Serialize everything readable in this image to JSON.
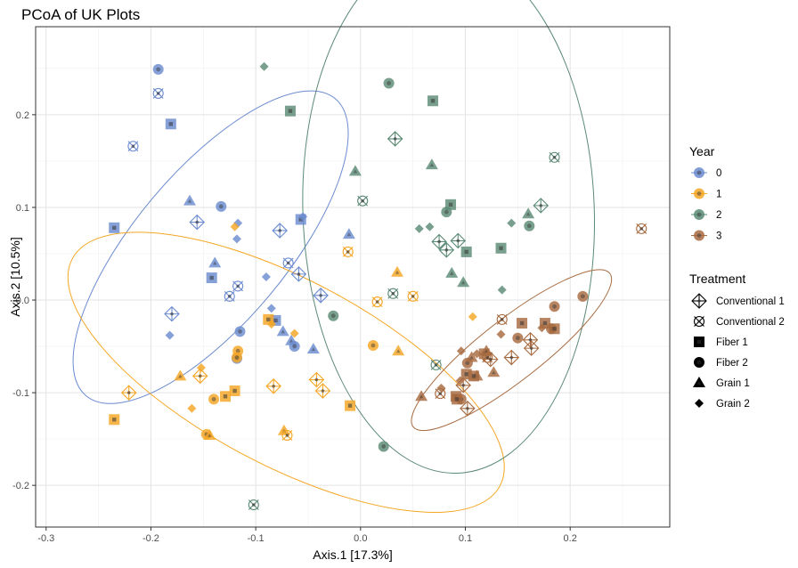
{
  "chart_data": {
    "type": "scatter",
    "title": "PCoA of UK Plots",
    "xlabel": "Axis.1   [17.3%]",
    "ylabel": "Axis.2   [10.5%]",
    "xlim": [
      -0.31,
      0.295
    ],
    "ylim": [
      -0.245,
      0.295
    ],
    "x_ticks": [
      -0.3,
      -0.2,
      -0.1,
      0.0,
      0.1,
      0.2
    ],
    "x_tick_labels": [
      "-0.3",
      "-0.2",
      "-0.1",
      "0.0",
      "0.1",
      "0.2"
    ],
    "y_ticks": [
      -0.2,
      -0.1,
      0.0,
      0.1,
      0.2
    ],
    "y_tick_labels": [
      "-0.2",
      "-0.1",
      "0.0",
      "0.1",
      "0.2"
    ],
    "grid": true,
    "legend_position": "right",
    "year_legend": {
      "title": "Year",
      "entries": [
        {
          "label": "0",
          "color": "#6b8bd0"
        },
        {
          "label": "1",
          "color": "#f5a623"
        },
        {
          "label": "2",
          "color": "#5b8a76"
        },
        {
          "label": "3",
          "color": "#a86a3f"
        }
      ]
    },
    "treatment_legend": {
      "title": "Treatment",
      "entries": [
        {
          "label": "Conventional 1",
          "shape": "conv1"
        },
        {
          "label": "Conventional 2",
          "shape": "conv2"
        },
        {
          "label": "Fiber 1",
          "shape": "fiber1"
        },
        {
          "label": "Fiber 2",
          "shape": "fiber2"
        },
        {
          "label": "Grain 1",
          "shape": "grain1"
        },
        {
          "label": "Grain 2",
          "shape": "grain2"
        }
      ]
    },
    "ellipses": [
      {
        "year": "0",
        "cx": -0.143,
        "cy": 0.057,
        "rx": 0.185,
        "ry": 0.082,
        "angle_deg": 50
      },
      {
        "year": "1",
        "cx": -0.071,
        "cy": -0.078,
        "rx": 0.231,
        "ry": 0.1,
        "angle_deg": -28
      },
      {
        "year": "2",
        "cx": 0.084,
        "cy": 0.096,
        "rx": 0.139,
        "ry": 0.283,
        "angle_deg": 2
      },
      {
        "year": "3",
        "cx": 0.144,
        "cy": -0.054,
        "rx": 0.119,
        "ry": 0.033,
        "angle_deg": 38
      }
    ],
    "points": [
      {
        "year": "0",
        "t": "fiber2",
        "x": -0.193,
        "y": 0.249
      },
      {
        "year": "0",
        "t": "conv2",
        "x": -0.193,
        "y": 0.223
      },
      {
        "year": "0",
        "t": "fiber1",
        "x": -0.181,
        "y": 0.19
      },
      {
        "year": "0",
        "t": "conv2",
        "x": -0.217,
        "y": 0.166
      },
      {
        "year": "0",
        "t": "fiber1",
        "x": -0.235,
        "y": 0.078
      },
      {
        "year": "0",
        "t": "grain1",
        "x": -0.163,
        "y": 0.107
      },
      {
        "year": "0",
        "t": "fiber2",
        "x": -0.133,
        "y": 0.101
      },
      {
        "year": "0",
        "t": "conv1",
        "x": -0.156,
        "y": 0.084
      },
      {
        "year": "0",
        "t": "grain2",
        "x": -0.117,
        "y": 0.083
      },
      {
        "year": "0",
        "t": "grain2",
        "x": -0.118,
        "y": 0.066
      },
      {
        "year": "0",
        "t": "grain1",
        "x": -0.139,
        "y": 0.04
      },
      {
        "year": "0",
        "t": "fiber1",
        "x": -0.142,
        "y": 0.024
      },
      {
        "year": "0",
        "t": "conv2",
        "x": -0.117,
        "y": 0.015
      },
      {
        "year": "0",
        "t": "conv2",
        "x": -0.125,
        "y": 0.004
      },
      {
        "year": "0",
        "t": "grain2",
        "x": -0.09,
        "y": 0.025
      },
      {
        "year": "0",
        "t": "conv1",
        "x": -0.077,
        "y": 0.075
      },
      {
        "year": "0",
        "t": "fiber1",
        "x": -0.057,
        "y": 0.087
      },
      {
        "year": "0",
        "t": "grain2",
        "x": -0.055,
        "y": 0.09
      },
      {
        "year": "0",
        "t": "grain1",
        "x": -0.011,
        "y": 0.071
      },
      {
        "year": "0",
        "t": "conv2",
        "x": -0.069,
        "y": 0.04
      },
      {
        "year": "0",
        "t": "conv1",
        "x": -0.059,
        "y": 0.028
      },
      {
        "year": "0",
        "t": "conv1",
        "x": -0.038,
        "y": 0.005
      },
      {
        "year": "0",
        "t": "conv1",
        "x": -0.18,
        "y": -0.015
      },
      {
        "year": "0",
        "t": "grain2",
        "x": -0.182,
        "y": -0.038
      },
      {
        "year": "0",
        "t": "grain2",
        "x": -0.085,
        "y": -0.009
      },
      {
        "year": "0",
        "t": "fiber2",
        "x": -0.115,
        "y": -0.034
      },
      {
        "year": "0",
        "t": "fiber1",
        "x": -0.081,
        "y": -0.022
      },
      {
        "year": "0",
        "t": "grain1",
        "x": -0.074,
        "y": -0.034
      },
      {
        "year": "0",
        "t": "grain1",
        "x": -0.066,
        "y": -0.044
      },
      {
        "year": "0",
        "t": "fiber2",
        "x": -0.063,
        "y": -0.05
      },
      {
        "year": "0",
        "t": "grain1",
        "x": -0.045,
        "y": -0.053
      },
      {
        "year": "0",
        "t": "fiber2",
        "x": -0.118,
        "y": -0.063
      },
      {
        "year": "1",
        "t": "grain2",
        "x": -0.12,
        "y": 0.079
      },
      {
        "year": "1",
        "t": "conv2",
        "x": -0.012,
        "y": 0.052
      },
      {
        "year": "1",
        "t": "grain1",
        "x": 0.035,
        "y": 0.03
      },
      {
        "year": "1",
        "t": "conv2",
        "x": 0.05,
        "y": 0.004
      },
      {
        "year": "1",
        "t": "conv2",
        "x": 0.016,
        "y": -0.002
      },
      {
        "year": "1",
        "t": "grain2",
        "x": 0.107,
        "y": -0.018
      },
      {
        "year": "1",
        "t": "fiber1",
        "x": -0.088,
        "y": -0.021
      },
      {
        "year": "1",
        "t": "grain2",
        "x": -0.085,
        "y": -0.026
      },
      {
        "year": "1",
        "t": "grain2",
        "x": -0.063,
        "y": -0.036
      },
      {
        "year": "1",
        "t": "fiber2",
        "x": -0.117,
        "y": -0.055
      },
      {
        "year": "1",
        "t": "fiber2",
        "x": -0.118,
        "y": -0.062
      },
      {
        "year": "1",
        "t": "fiber2",
        "x": 0.012,
        "y": -0.049
      },
      {
        "year": "1",
        "t": "grain1",
        "x": 0.036,
        "y": -0.055
      },
      {
        "year": "1",
        "t": "grain1",
        "x": -0.172,
        "y": -0.082
      },
      {
        "year": "1",
        "t": "grain2",
        "x": -0.152,
        "y": -0.073
      },
      {
        "year": "1",
        "t": "conv1",
        "x": -0.153,
        "y": -0.082
      },
      {
        "year": "1",
        "t": "conv1",
        "x": -0.083,
        "y": -0.093
      },
      {
        "year": "1",
        "t": "conv1",
        "x": -0.042,
        "y": -0.086
      },
      {
        "year": "1",
        "t": "conv1",
        "x": -0.036,
        "y": -0.098
      },
      {
        "year": "1",
        "t": "conv1",
        "x": -0.221,
        "y": -0.1
      },
      {
        "year": "1",
        "t": "fiber1",
        "x": -0.12,
        "y": -0.098
      },
      {
        "year": "1",
        "t": "fiber1",
        "x": -0.129,
        "y": -0.104
      },
      {
        "year": "1",
        "t": "fiber2",
        "x": -0.14,
        "y": -0.107
      },
      {
        "year": "1",
        "t": "grain2",
        "x": -0.161,
        "y": -0.117
      },
      {
        "year": "1",
        "t": "fiber1",
        "x": -0.01,
        "y": -0.114
      },
      {
        "year": "1",
        "t": "fiber1",
        "x": -0.235,
        "y": -0.129
      },
      {
        "year": "1",
        "t": "fiber2",
        "x": -0.147,
        "y": -0.145
      },
      {
        "year": "1",
        "t": "grain1",
        "x": -0.144,
        "y": -0.146
      },
      {
        "year": "1",
        "t": "grain1",
        "x": -0.073,
        "y": -0.141
      },
      {
        "year": "1",
        "t": "conv2",
        "x": -0.07,
        "y": -0.146
      },
      {
        "year": "2",
        "t": "grain2",
        "x": -0.092,
        "y": 0.252
      },
      {
        "year": "2",
        "t": "fiber2",
        "x": 0.027,
        "y": 0.234
      },
      {
        "year": "2",
        "t": "fiber1",
        "x": 0.069,
        "y": 0.215
      },
      {
        "year": "2",
        "t": "fiber1",
        "x": -0.067,
        "y": 0.204
      },
      {
        "year": "2",
        "t": "conv1",
        "x": 0.033,
        "y": 0.174
      },
      {
        "year": "2",
        "t": "conv2",
        "x": 0.185,
        "y": 0.154
      },
      {
        "year": "2",
        "t": "grain1",
        "x": -0.005,
        "y": 0.139
      },
      {
        "year": "2",
        "t": "grain1",
        "x": 0.068,
        "y": 0.146
      },
      {
        "year": "2",
        "t": "conv2",
        "x": 0.002,
        "y": 0.107
      },
      {
        "year": "2",
        "t": "fiber2",
        "x": 0.082,
        "y": 0.095
      },
      {
        "year": "2",
        "t": "fiber1",
        "x": 0.086,
        "y": 0.103
      },
      {
        "year": "2",
        "t": "conv1",
        "x": 0.172,
        "y": 0.102
      },
      {
        "year": "2",
        "t": "grain1",
        "x": 0.16,
        "y": 0.093
      },
      {
        "year": "2",
        "t": "fiber2",
        "x": 0.161,
        "y": 0.08
      },
      {
        "year": "2",
        "t": "grain2",
        "x": 0.144,
        "y": 0.083
      },
      {
        "year": "2",
        "t": "grain2",
        "x": 0.056,
        "y": 0.077
      },
      {
        "year": "2",
        "t": "grain2",
        "x": 0.066,
        "y": 0.079
      },
      {
        "year": "2",
        "t": "conv1",
        "x": 0.075,
        "y": 0.063
      },
      {
        "year": "2",
        "t": "conv1",
        "x": 0.093,
        "y": 0.064
      },
      {
        "year": "2",
        "t": "conv1",
        "x": 0.082,
        "y": 0.054
      },
      {
        "year": "2",
        "t": "fiber1",
        "x": 0.101,
        "y": 0.052
      },
      {
        "year": "2",
        "t": "fiber1",
        "x": 0.134,
        "y": 0.056
      },
      {
        "year": "2",
        "t": "grain1",
        "x": 0.087,
        "y": 0.029
      },
      {
        "year": "2",
        "t": "grain1",
        "x": 0.098,
        "y": 0.019
      },
      {
        "year": "2",
        "t": "conv2",
        "x": 0.031,
        "y": 0.007
      },
      {
        "year": "2",
        "t": "grain2",
        "x": 0.135,
        "y": 0.011
      },
      {
        "year": "2",
        "t": "fiber2",
        "x": -0.026,
        "y": -0.017
      },
      {
        "year": "2",
        "t": "conv2",
        "x": 0.072,
        "y": -0.07
      },
      {
        "year": "2",
        "t": "fiber2",
        "x": 0.022,
        "y": -0.158
      },
      {
        "year": "2",
        "t": "conv2",
        "x": -0.102,
        "y": -0.221
      },
      {
        "year": "3",
        "t": "conv2",
        "x": 0.268,
        "y": 0.077
      },
      {
        "year": "3",
        "t": "fiber2",
        "x": 0.212,
        "y": 0.004
      },
      {
        "year": "3",
        "t": "fiber2",
        "x": 0.185,
        "y": -0.007
      },
      {
        "year": "3",
        "t": "fiber2",
        "x": 0.182,
        "y": -0.031
      },
      {
        "year": "3",
        "t": "fiber1",
        "x": 0.185,
        "y": -0.031
      },
      {
        "year": "3",
        "t": "conv2",
        "x": 0.135,
        "y": -0.021
      },
      {
        "year": "3",
        "t": "fiber1",
        "x": 0.154,
        "y": -0.025
      },
      {
        "year": "3",
        "t": "fiber1",
        "x": 0.176,
        "y": -0.025
      },
      {
        "year": "3",
        "t": "grain2",
        "x": 0.173,
        "y": -0.03
      },
      {
        "year": "3",
        "t": "grain2",
        "x": 0.134,
        "y": -0.037
      },
      {
        "year": "3",
        "t": "conv1",
        "x": 0.162,
        "y": -0.043
      },
      {
        "year": "3",
        "t": "conv1",
        "x": 0.163,
        "y": -0.052
      },
      {
        "year": "3",
        "t": "fiber2",
        "x": 0.15,
        "y": -0.041
      },
      {
        "year": "3",
        "t": "grain2",
        "x": 0.096,
        "y": -0.055
      },
      {
        "year": "3",
        "t": "grain2",
        "x": 0.111,
        "y": -0.058
      },
      {
        "year": "3",
        "t": "fiber1",
        "x": 0.118,
        "y": -0.058
      },
      {
        "year": "3",
        "t": "grain1",
        "x": 0.12,
        "y": -0.055
      },
      {
        "year": "3",
        "t": "conv2",
        "x": 0.121,
        "y": -0.062
      },
      {
        "year": "3",
        "t": "conv1",
        "x": 0.124,
        "y": -0.064
      },
      {
        "year": "3",
        "t": "conv1",
        "x": 0.144,
        "y": -0.062
      },
      {
        "year": "3",
        "t": "fiber2",
        "x": 0.102,
        "y": -0.068
      },
      {
        "year": "3",
        "t": "grain1",
        "x": 0.106,
        "y": -0.062
      },
      {
        "year": "3",
        "t": "fiber1",
        "x": 0.101,
        "y": -0.08
      },
      {
        "year": "3",
        "t": "grain1",
        "x": 0.111,
        "y": -0.082
      },
      {
        "year": "3",
        "t": "grain1",
        "x": 0.127,
        "y": -0.078
      },
      {
        "year": "3",
        "t": "fiber1",
        "x": 0.108,
        "y": -0.082
      },
      {
        "year": "3",
        "t": "grain2",
        "x": 0.095,
        "y": -0.087
      },
      {
        "year": "3",
        "t": "conv1",
        "x": 0.098,
        "y": -0.092
      },
      {
        "year": "3",
        "t": "grain2",
        "x": 0.077,
        "y": -0.095
      },
      {
        "year": "3",
        "t": "conv2",
        "x": 0.076,
        "y": -0.101
      },
      {
        "year": "3",
        "t": "grain1",
        "x": 0.058,
        "y": -0.104
      },
      {
        "year": "3",
        "t": "fiber1",
        "x": 0.091,
        "y": -0.104
      },
      {
        "year": "3",
        "t": "fiber2",
        "x": 0.096,
        "y": -0.107
      },
      {
        "year": "3",
        "t": "conv1",
        "x": 0.102,
        "y": -0.117
      },
      {
        "year": "3",
        "t": "fiber1",
        "x": 0.092,
        "y": -0.107
      }
    ]
  }
}
